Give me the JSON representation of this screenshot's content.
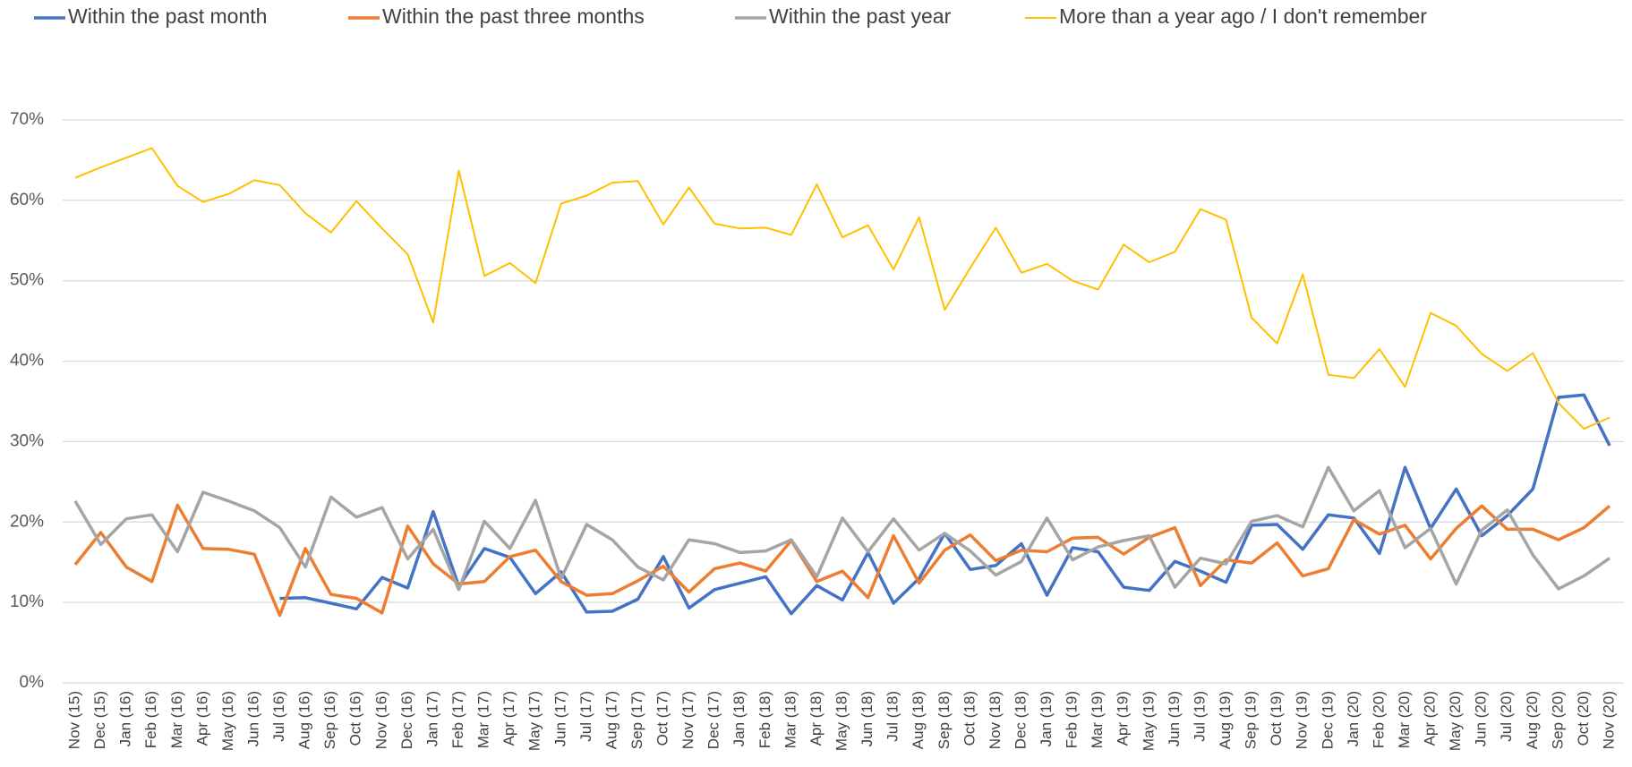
{
  "chart_data": {
    "type": "line",
    "categories": [
      "Nov (15)",
      "Dec (15)",
      "Jan (16)",
      "Feb (16)",
      "Mar (16)",
      "Apr (16)",
      "May (16)",
      "Jun (16)",
      "Jul (16)",
      "Aug (16)",
      "Sep (16)",
      "Oct (16)",
      "Nov (16)",
      "Dec (16)",
      "Jan (17)",
      "Feb (17)",
      "Mar (17)",
      "Apr (17)",
      "May (17)",
      "Jun (17)",
      "Jul (17)",
      "Aug (17)",
      "Sep (17)",
      "Oct (17)",
      "Nov (17)",
      "Dec (17)",
      "Jan (18)",
      "Feb (18)",
      "Mar (18)",
      "Apr (18)",
      "May (18)",
      "Jun (18)",
      "Jul (18)",
      "Aug (18)",
      "Sep (18)",
      "Oct (18)",
      "Nov (18)",
      "Dec (18)",
      "Jan (19)",
      "Feb (19)",
      "Mar (19)",
      "Apr (19)",
      "May (19)",
      "Jun (19)",
      "Jul (19)",
      "Aug (19)",
      "Sep (19)",
      "Oct (19)",
      "Nov (19)",
      "Dec (19)",
      "Jan (20)",
      "Feb (20)",
      "Mar (20)",
      "Apr (20)",
      "May (20)",
      "Jun (20)",
      "Jul (20)",
      "Aug (20)",
      "Sep (20)",
      "Oct (20)",
      "Nov (20)"
    ],
    "series": [
      {
        "name": "Within the past month",
        "color": "#4472c4",
        "values": [
          null,
          null,
          null,
          null,
          null,
          null,
          null,
          null,
          10.5,
          10.6,
          9.9,
          9.2,
          13.1,
          11.8,
          21.3,
          12.0,
          16.7,
          15.6,
          11.1,
          13.8,
          8.8,
          8.9,
          10.4,
          15.7,
          9.3,
          11.6,
          12.4,
          13.2,
          8.6,
          12.1,
          10.3,
          16.2,
          9.9,
          13.0,
          18.6,
          14.1,
          14.6,
          17.3,
          10.9,
          16.8,
          16.3,
          11.9,
          11.5,
          15.1,
          13.9,
          12.5,
          19.6,
          19.7,
          16.6,
          20.9,
          20.5,
          16.1,
          26.8,
          19.2,
          24.1,
          18.3,
          20.8,
          24.1,
          35.5,
          35.8,
          29.5
        ]
      },
      {
        "name": "Within the past three months",
        "color": "#ed7d31",
        "values": [
          14.7,
          18.7,
          14.4,
          12.6,
          22.1,
          16.7,
          16.6,
          16.0,
          8.4,
          16.7,
          11.0,
          10.5,
          8.7,
          19.5,
          14.8,
          12.3,
          12.6,
          15.7,
          16.5,
          12.6,
          10.9,
          11.1,
          12.7,
          14.5,
          11.3,
          14.2,
          14.9,
          13.9,
          17.7,
          12.6,
          13.9,
          10.6,
          18.3,
          12.4,
          16.5,
          18.4,
          15.2,
          16.5,
          16.3,
          18.0,
          18.1,
          16.0,
          18.1,
          19.3,
          12.1,
          15.3,
          14.9,
          17.4,
          13.3,
          14.2,
          20.3,
          18.5,
          19.6,
          15.4,
          19.2,
          22.0,
          19.1,
          19.1,
          17.8,
          19.3,
          22.0
        ]
      },
      {
        "name": "Within the past year",
        "color": "#a5a5a5",
        "values": [
          22.6,
          17.2,
          20.4,
          20.9,
          16.3,
          23.7,
          22.6,
          21.4,
          19.3,
          14.4,
          23.1,
          20.6,
          21.8,
          15.4,
          19.1,
          11.6,
          20.1,
          16.7,
          22.7,
          13.0,
          19.7,
          17.8,
          14.4,
          12.8,
          17.8,
          17.3,
          16.2,
          16.4,
          17.8,
          13.2,
          20.5,
          16.3,
          20.4,
          16.5,
          18.6,
          16.4,
          13.4,
          15.1,
          20.5,
          15.3,
          16.9,
          17.7,
          18.3,
          11.9,
          15.5,
          14.8,
          20.1,
          20.8,
          19.4,
          26.8,
          21.4,
          23.9,
          16.8,
          19.2,
          12.3,
          19.0,
          21.5,
          15.9,
          11.7,
          13.3,
          15.5
        ]
      },
      {
        "name": "More than a year ago / I don't remember",
        "color": "#ffc000",
        "values": [
          62.8,
          64.1,
          65.3,
          66.5,
          61.8,
          59.8,
          60.8,
          62.5,
          61.9,
          58.4,
          56.0,
          59.9,
          56.5,
          53.3,
          44.8,
          63.7,
          50.6,
          52.2,
          49.7,
          59.6,
          60.6,
          62.2,
          62.4,
          57.0,
          61.6,
          57.1,
          56.5,
          56.6,
          55.7,
          62.0,
          55.4,
          56.9,
          51.4,
          57.9,
          46.4,
          51.6,
          56.6,
          51.0,
          52.1,
          50.0,
          48.9,
          54.5,
          52.3,
          53.6,
          58.9,
          57.6,
          45.4,
          42.2,
          50.8,
          38.3,
          37.9,
          41.5,
          36.8,
          46.0,
          44.4,
          40.9,
          38.8,
          41.0,
          34.8,
          31.6,
          33.0
        ]
      }
    ],
    "ylim": [
      0,
      70
    ],
    "yticks": [
      {
        "value": 0,
        "label": "0%"
      },
      {
        "value": 10,
        "label": "10%"
      },
      {
        "value": 20,
        "label": "20%"
      },
      {
        "value": 30,
        "label": "30%"
      },
      {
        "value": 40,
        "label": "40%"
      },
      {
        "value": 50,
        "label": "50%"
      },
      {
        "value": 60,
        "label": "60%"
      },
      {
        "value": 70,
        "label": "70%"
      }
    ],
    "grid": true,
    "legend": "top"
  }
}
